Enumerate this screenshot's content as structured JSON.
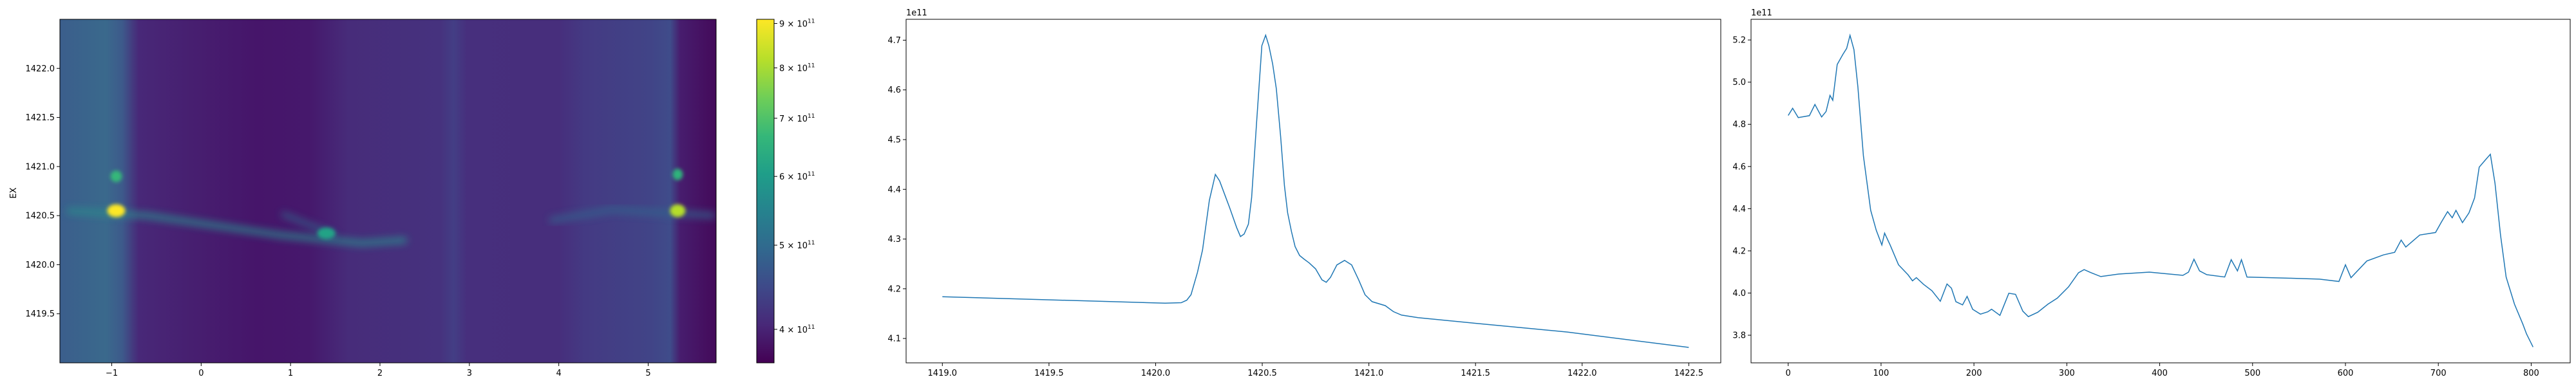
{
  "chart_data": [
    {
      "type": "heatmap",
      "ylabel": "EX",
      "xlabel": "",
      "xlim": [
        -1.58,
        5.76
      ],
      "ylim": [
        1419.0,
        1422.5
      ],
      "xticks": [
        "-1",
        "0",
        "1",
        "2",
        "3",
        "4",
        "5"
      ],
      "yticks": [
        "1419.5",
        "1420.0",
        "1420.5",
        "1421.0",
        "1421.5",
        "1422.0"
      ],
      "colormap": "viridis",
      "colorbar": {
        "scale": "log",
        "range": [
          366000000000.0,
          910000000000.0
        ],
        "ticks": [
          {
            "value": 400000000000.0,
            "mantissa": "4",
            "exponent": "11"
          },
          {
            "value": 500000000000.0,
            "mantissa": "5",
            "exponent": "11"
          },
          {
            "value": 600000000000.0,
            "mantissa": "6",
            "exponent": "11"
          },
          {
            "value": 700000000000.0,
            "mantissa": "7",
            "exponent": "11"
          },
          {
            "value": 800000000000.0,
            "mantissa": "8",
            "exponent": "11"
          },
          {
            "value": 900000000000.0,
            "mantissa": "9",
            "exponent": "11"
          }
        ],
        "times": "×",
        "base": "10"
      },
      "hotspots": [
        {
          "x": -0.95,
          "y": 1420.55,
          "value": 900000000000.0
        },
        {
          "x": -0.95,
          "y": 1420.9,
          "value": 580000000000.0
        },
        {
          "x": 1.4,
          "y": 1420.32,
          "value": 630000000000.0
        },
        {
          "x": 5.33,
          "y": 1420.55,
          "value": 820000000000.0
        },
        {
          "x": 5.33,
          "y": 1420.92,
          "value": 560000000000.0
        }
      ]
    },
    {
      "type": "line",
      "offset_label": "1e11",
      "xlim": [
        1418.83,
        1422.65
      ],
      "ylim": [
        4.051,
        4.742
      ],
      "xticks": [
        "1419.0",
        "1419.5",
        "1420.0",
        "1420.5",
        "1421.0",
        "1421.5",
        "1422.0",
        "1422.5"
      ],
      "yticks": [
        "4.1",
        "4.2",
        "4.3",
        "4.4",
        "4.5",
        "4.6",
        "4.7"
      ],
      "color": "#1f77b4",
      "x": [
        1419.0,
        1420.045,
        1420.12,
        1420.146,
        1420.166,
        1420.196,
        1420.22,
        1420.252,
        1420.28,
        1420.3,
        1420.347,
        1420.38,
        1420.398,
        1420.415,
        1420.435,
        1420.45,
        1420.473,
        1420.498,
        1420.516,
        1420.531,
        1420.549,
        1420.566,
        1420.586,
        1420.604,
        1420.619,
        1420.637,
        1420.654,
        1420.675,
        1420.695,
        1420.72,
        1420.75,
        1420.78,
        1420.8,
        1420.82,
        1420.85,
        1420.886,
        1420.919,
        1420.952,
        1420.982,
        1421.015,
        1421.077,
        1421.115,
        1421.153,
        1421.23,
        1421.49,
        1421.93,
        1422.5
      ],
      "y": [
        4.184,
        4.171,
        4.172,
        4.177,
        4.188,
        4.233,
        4.278,
        4.378,
        4.43,
        4.417,
        4.363,
        4.323,
        4.305,
        4.31,
        4.33,
        4.383,
        4.532,
        4.689,
        4.71,
        4.689,
        4.652,
        4.602,
        4.507,
        4.407,
        4.353,
        4.315,
        4.285,
        4.267,
        4.26,
        4.252,
        4.24,
        4.218,
        4.213,
        4.223,
        4.248,
        4.257,
        4.248,
        4.218,
        4.188,
        4.174,
        4.166,
        4.154,
        4.147,
        4.142,
        4.131,
        4.113,
        4.082
      ]
    },
    {
      "type": "line",
      "offset_label": "1e11",
      "xlim": [
        -40,
        842
      ],
      "ylim": [
        3.669,
        5.298
      ],
      "xticks": [
        "0",
        "100",
        "200",
        "300",
        "400",
        "500",
        "600",
        "700",
        "800"
      ],
      "yticks": [
        "3.8",
        "4.0",
        "4.2",
        "4.4",
        "4.6",
        "4.8",
        "5.0",
        "5.2"
      ],
      "color": "#1f77b4",
      "x": [
        0,
        4.8,
        10.8,
        22.8,
        28.8,
        36,
        40.8,
        45,
        48,
        52.8,
        58.8,
        63,
        66.6,
        70.8,
        75,
        81,
        88.8,
        94.8,
        100.8,
        103.8,
        109.8,
        118.8,
        129,
        133.8,
        138,
        145.8,
        154.8,
        163.8,
        171,
        175.8,
        180.6,
        187.8,
        192.6,
        198.6,
        207,
        214.8,
        219,
        228,
        237.6,
        244.8,
        252.6,
        258.6,
        268.8,
        279.6,
        289.8,
        301.8,
        312.6,
        318.6,
        325.8,
        336.6,
        355.8,
        388.9,
        425,
        431,
        436.9,
        442.9,
        450.8,
        470,
        477,
        483.7,
        488,
        494,
        542,
        572,
        593,
        600,
        606,
        623,
        641,
        653,
        660,
        665,
        680,
        697,
        703,
        710,
        715,
        719,
        726,
        733,
        739,
        744,
        751,
        756,
        761,
        767,
        773,
        782,
        791,
        795,
        802
      ],
      "y": [
        4.842,
        4.876,
        4.832,
        4.841,
        4.894,
        4.835,
        4.861,
        4.937,
        4.914,
        5.084,
        5.131,
        5.16,
        5.222,
        5.154,
        4.978,
        4.65,
        4.392,
        4.298,
        4.228,
        4.284,
        4.228,
        4.134,
        4.087,
        4.058,
        4.073,
        4.041,
        4.011,
        3.961,
        4.043,
        4.023,
        3.959,
        3.944,
        3.984,
        3.923,
        3.9,
        3.911,
        3.923,
        3.894,
        3.999,
        3.994,
        3.914,
        3.888,
        3.909,
        3.947,
        3.976,
        4.029,
        4.096,
        4.111,
        4.097,
        4.078,
        4.09,
        4.099,
        4.084,
        4.099,
        4.16,
        4.105,
        4.087,
        4.076,
        4.158,
        4.105,
        4.158,
        4.076,
        4.07,
        4.066,
        4.055,
        4.134,
        4.073,
        4.152,
        4.181,
        4.193,
        4.251,
        4.218,
        4.275,
        4.287,
        4.334,
        4.386,
        4.357,
        4.392,
        4.334,
        4.38,
        4.451,
        4.597,
        4.633,
        4.658,
        4.521,
        4.275,
        4.076,
        3.947,
        3.853,
        3.806,
        3.744
      ]
    }
  ]
}
